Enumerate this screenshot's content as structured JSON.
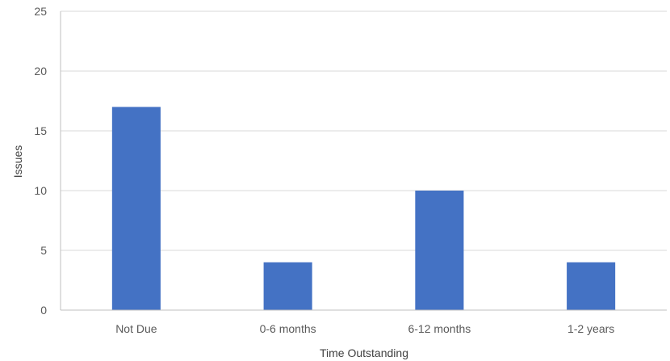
{
  "chart_data": {
    "type": "bar",
    "title": "",
    "xlabel": "Time Outstanding",
    "ylabel": "Issues",
    "categories": [
      "Not Due",
      "0-6 months",
      "6-12 months",
      "1-2 years"
    ],
    "values": [
      17,
      4,
      10,
      4
    ],
    "ylim": [
      0,
      25
    ],
    "yticks": [
      "0",
      "5",
      "10",
      "15",
      "20",
      "25"
    ],
    "grid": true,
    "legend": "none",
    "colors": {
      "bar": "#4472c4",
      "grid": "#d9d9d9",
      "axis": "#bfbfbf"
    }
  }
}
